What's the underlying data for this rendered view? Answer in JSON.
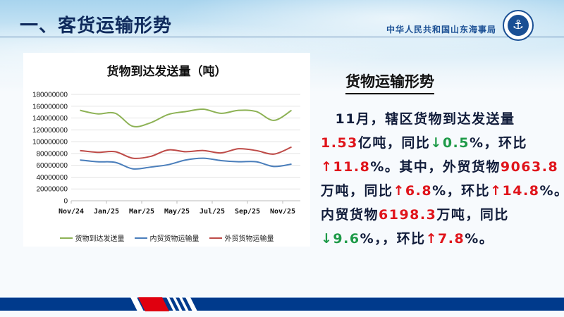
{
  "header": {
    "title": "一、客货运输形势",
    "org": "中华人民共和国山东海事局",
    "logo_text": "CHINA MSA"
  },
  "chart_data": {
    "type": "line",
    "title": "货物到达发送量（吨）",
    "categories": [
      "Nov/24",
      "Dec/24",
      "Jan/25",
      "Feb/25",
      "Mar/25",
      "Apr/25",
      "May/25",
      "Jun/25",
      "Jul/25",
      "Aug/25",
      "Sep/25",
      "Oct/25",
      "Nov/25"
    ],
    "tick_labels": [
      "Nov/24",
      "Jan/25",
      "Mar/25",
      "May/25",
      "Jul/25",
      "Sep/25",
      "Nov/25"
    ],
    "ylim": [
      0,
      180000000
    ],
    "yticks": [
      "0",
      "20000000",
      "40000000",
      "60000000",
      "80000000",
      "100000000",
      "120000000",
      "140000000",
      "160000000",
      "180000000"
    ],
    "grid": true,
    "legend": "bottom",
    "series": [
      {
        "name": "货物到达发送量",
        "color": "#8db255",
        "values": [
          153000000,
          147000000,
          148000000,
          126000000,
          132000000,
          146000000,
          151000000,
          155000000,
          148000000,
          153000000,
          151000000,
          136000000,
          153000000
        ]
      },
      {
        "name": "内贸货物运输量",
        "color": "#4a7ebb",
        "values": [
          69000000,
          66000000,
          65000000,
          54000000,
          57000000,
          61000000,
          69000000,
          72000000,
          68000000,
          66000000,
          66000000,
          58000000,
          62000000
        ]
      },
      {
        "name": "外贸货物运输量",
        "color": "#be4b48",
        "values": [
          85000000,
          82000000,
          83000000,
          72000000,
          75000000,
          86000000,
          83000000,
          85000000,
          81000000,
          88000000,
          85000000,
          79000000,
          91000000
        ]
      }
    ]
  },
  "summary": {
    "title": "货物运输形势",
    "lines": [
      [
        {
          "t": "　11月，辖区货物到达发送量",
          "c": ""
        }
      ],
      [
        {
          "t": "1.53",
          "c": "red"
        },
        {
          "t": "亿吨，同比",
          "c": ""
        },
        {
          "t": "↓0.5",
          "c": "grn"
        },
        {
          "t": "%，环比",
          "c": ""
        }
      ],
      [
        {
          "t": "↑11.8",
          "c": "red"
        },
        {
          "t": "%。其中，外贸货物",
          "c": ""
        },
        {
          "t": "9063.8",
          "c": "red"
        }
      ],
      [
        {
          "t": "万吨，同比",
          "c": ""
        },
        {
          "t": "↑6.8",
          "c": "red"
        },
        {
          "t": "%，环比",
          "c": ""
        },
        {
          "t": "↑14.8",
          "c": "red"
        },
        {
          "t": "%。",
          "c": ""
        }
      ],
      [
        {
          "t": "内贸货物",
          "c": ""
        },
        {
          "t": "6198.3",
          "c": "red"
        },
        {
          "t": "万吨，同比",
          "c": ""
        }
      ],
      [
        {
          "t": "↓9.6",
          "c": "grn"
        },
        {
          "t": "%，，环比",
          "c": ""
        },
        {
          "t": "↑7.8",
          "c": "red"
        },
        {
          "t": "%。",
          "c": ""
        }
      ]
    ]
  }
}
